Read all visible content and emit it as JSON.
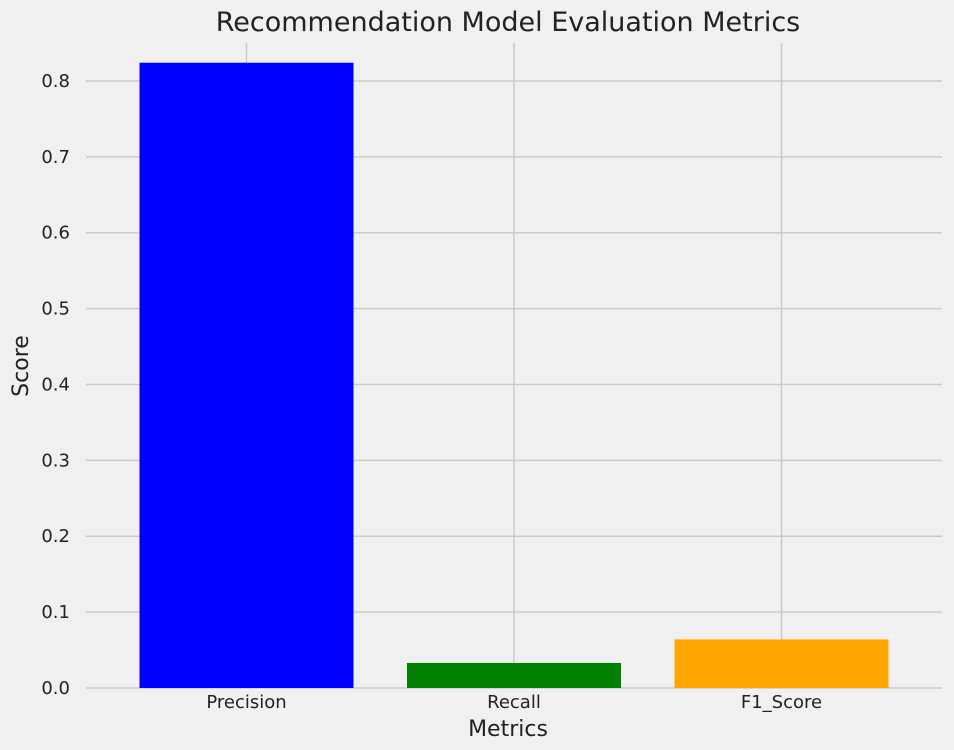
{
  "chart_data": {
    "type": "bar",
    "title": "Recommendation Model Evaluation Metrics",
    "xlabel": "Metrics",
    "ylabel": "Score",
    "categories": [
      "Precision",
      "Recall",
      "F1_Score"
    ],
    "values": [
      0.824,
      0.033,
      0.064
    ],
    "bar_colors": [
      "#0000ff",
      "#008000",
      "#ffa500"
    ],
    "ylim": [
      0,
      0.85
    ],
    "yticks": [
      0.0,
      0.1,
      0.2,
      0.3,
      0.4,
      0.5,
      0.6,
      0.7,
      0.8
    ],
    "ytick_labels": [
      "0.0",
      "0.1",
      "0.2",
      "0.3",
      "0.4",
      "0.5",
      "0.6",
      "0.7",
      "0.8"
    ],
    "grid": true,
    "legend": false,
    "background_color": "#f0f0f0",
    "grid_color": "#cbcbcb"
  }
}
